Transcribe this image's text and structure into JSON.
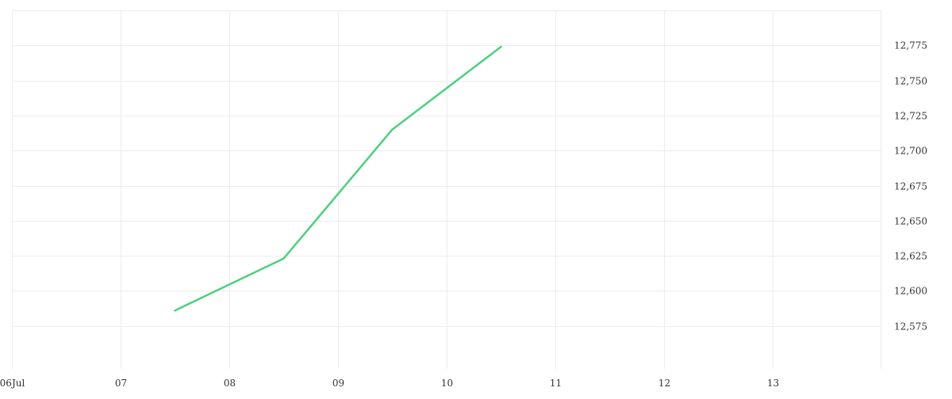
{
  "chart_data": {
    "type": "line",
    "title": "",
    "xlabel": "",
    "ylabel": "",
    "x_ticks": [
      "06Jul",
      "07",
      "08",
      "09",
      "10",
      "11",
      "12",
      "13"
    ],
    "y_ticks": [
      "12,575",
      "12,600",
      "12,625",
      "12,650",
      "12,675",
      "12,700",
      "12,725",
      "12,750",
      "12,775"
    ],
    "y_tick_values": [
      12575,
      12600,
      12625,
      12650,
      12675,
      12700,
      12725,
      12750,
      12775
    ],
    "xlim": [
      "2023-07-06",
      "2023-07-14"
    ],
    "ylim": [
      12550,
      12800
    ],
    "grid": true,
    "y_axis_side": "right",
    "series": [
      {
        "color": "#4cd07d",
        "points": [
          {
            "x": "2023-07-07T12:00",
            "y": 12586
          },
          {
            "x": "2023-07-08T12:00",
            "y": 12623
          },
          {
            "x": "2023-07-09T12:00",
            "y": 12715
          },
          {
            "x": "2023-07-10T12:00",
            "y": 12774
          }
        ]
      }
    ]
  }
}
